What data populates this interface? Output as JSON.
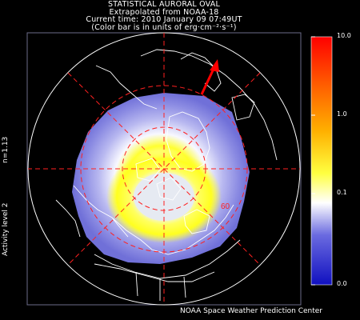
{
  "header": {
    "line1": "STATISTICAL AURORAL OVAL",
    "line2": "Extrapolated from NOAA-18",
    "line3": "Current time: 2010 January 09 07:49UT",
    "line4": "(Color bar is in units of erg·cm⁻²·s⁻¹)"
  },
  "side": {
    "n_value": "n=1.13",
    "activity": "Activity level 2"
  },
  "colorbar": {
    "ticks": [
      "10.0",
      "1.0",
      "0.1",
      "0.0"
    ],
    "stops": [
      "#1010c0",
      "#6a6ae0",
      "#ffffff",
      "#ffff40",
      "#ffb000",
      "#ff6000",
      "#ff0000"
    ]
  },
  "map": {
    "latitude_label": "60",
    "grid_color": "#ff2020",
    "sun_arrow_color": "#ff0000"
  },
  "footer": {
    "credit": "NOAA Space Weather Prediction Center"
  }
}
